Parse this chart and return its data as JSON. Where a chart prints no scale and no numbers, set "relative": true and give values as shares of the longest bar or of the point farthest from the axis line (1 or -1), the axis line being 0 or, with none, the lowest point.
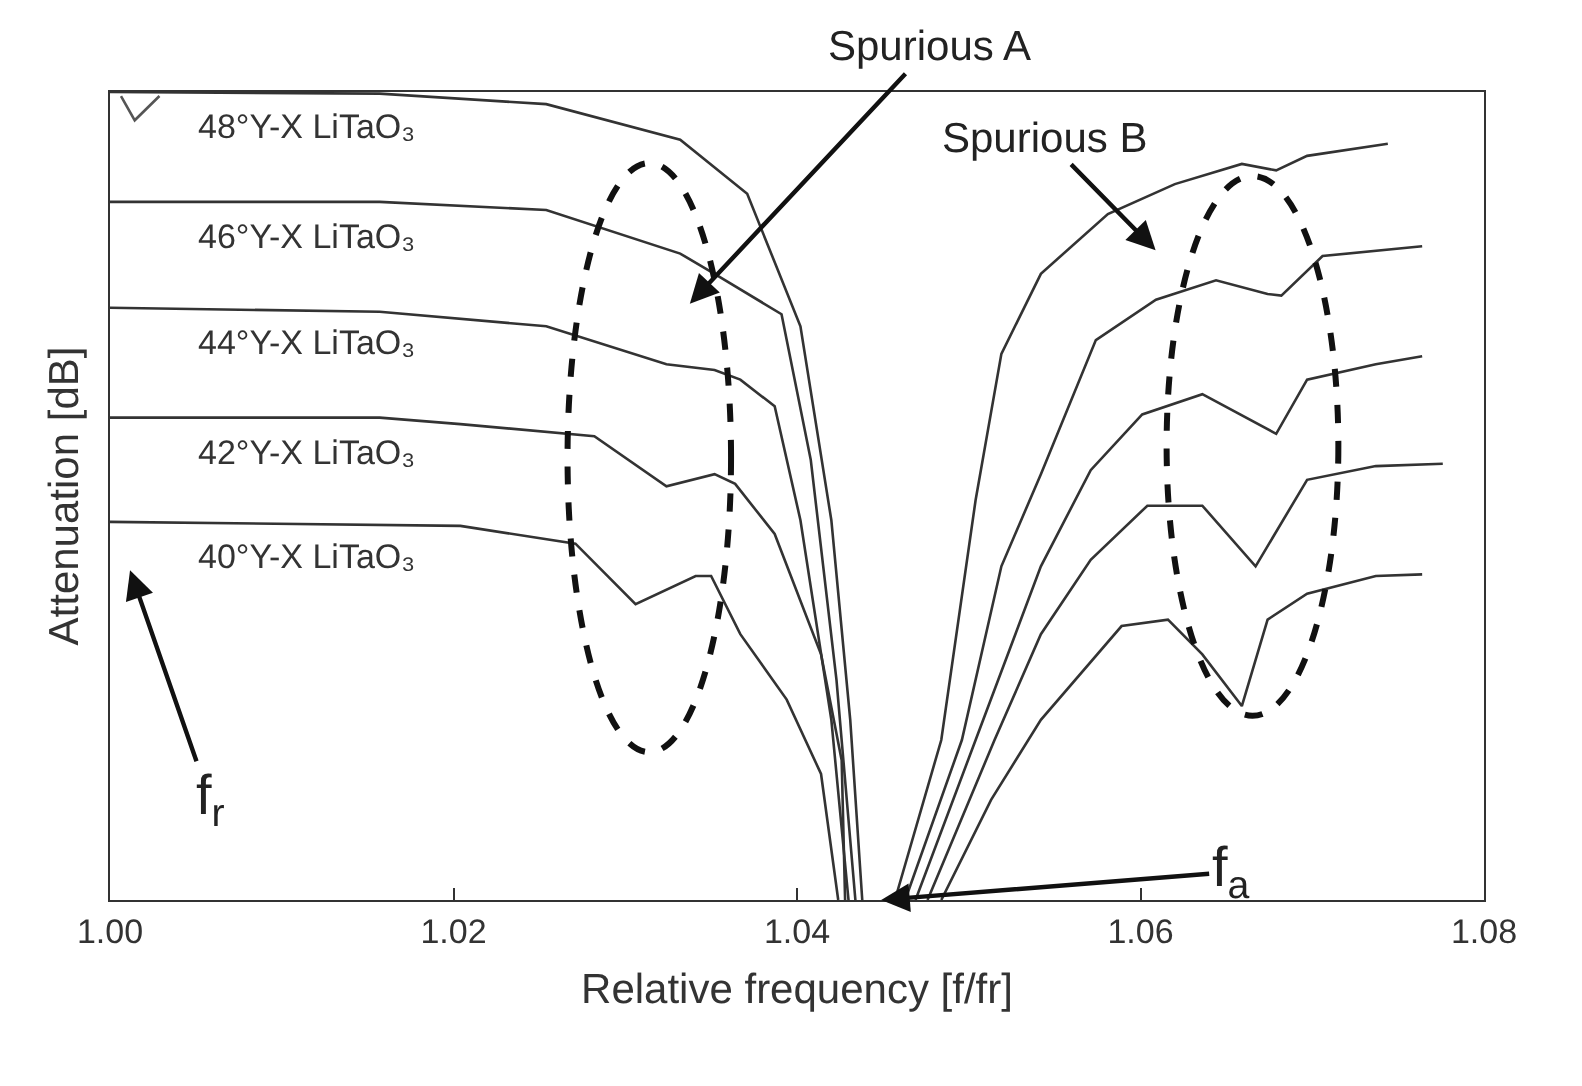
{
  "chart_data": {
    "type": "line",
    "relative": true,
    "xlabel": "Relative frequency [f/fr]",
    "ylabel": "Attenuation [dB]",
    "xlim": [
      1.0,
      1.08
    ],
    "xticks": [
      {
        "value": 1.0,
        "label": "1.00"
      },
      1.02,
      1.04,
      1.06,
      {
        "value": 1.08,
        "label": "1.08"
      }
    ],
    "grid": false,
    "legend": false,
    "marker": "none",
    "line_style": "solid",
    "series": [
      {
        "name": "48°Y-X LiTaO₃",
        "color": "#333333",
        "x": [
          1.0,
          1.0157,
          1.0254,
          1.0332,
          1.0371,
          1.0402,
          1.042,
          1.0431,
          1.0438,
          1.0448,
          1.0457,
          1.0484,
          1.0504,
          1.0519,
          1.0542,
          1.0581,
          1.062,
          1.0659,
          1.0679,
          1.0697,
          1.0744
        ],
        "values": [
          1.0,
          0.998,
          0.985,
          0.941,
          0.874,
          0.71,
          0.47,
          0.223,
          0,
          null,
          0,
          0.198,
          0.495,
          0.676,
          0.775,
          0.849,
          0.886,
          0.911,
          0.903,
          0.921,
          0.936
        ]
      },
      {
        "name": "46°Y-X LiTaO₃",
        "color": "#333333",
        "x": [
          1.0,
          1.0157,
          1.0254,
          1.0332,
          1.0352,
          1.0391,
          1.0408,
          1.0423,
          1.0434,
          1.045,
          1.0463,
          1.0496,
          1.0519,
          1.0542,
          1.0574,
          1.0609,
          1.0644,
          1.0674,
          1.0682,
          1.0706,
          1.0764
        ],
        "values": [
          0.864,
          0.864,
          0.854,
          0.8,
          0.775,
          0.725,
          0.545,
          0.272,
          0,
          null,
          0,
          0.198,
          0.413,
          0.527,
          0.693,
          0.743,
          0.767,
          0.75,
          0.748,
          0.797,
          0.809
        ]
      },
      {
        "name": "44°Y-X LiTaO₃",
        "color": "#333333",
        "x": [
          1.0,
          1.0157,
          1.0254,
          1.0324,
          1.0352,
          1.0367,
          1.0387,
          1.0402,
          1.042,
          1.043,
          1.045,
          1.0469,
          1.0504,
          1.0542,
          1.0571,
          1.0601,
          1.0636,
          1.0679,
          1.0697,
          1.0737,
          1.0764
        ],
        "values": [
          0.733,
          0.728,
          0.71,
          0.663,
          0.656,
          0.644,
          0.611,
          0.47,
          0.223,
          0,
          null,
          0,
          0.198,
          0.413,
          0.532,
          0.601,
          0.626,
          0.577,
          0.644,
          0.663,
          0.673
        ]
      },
      {
        "name": "42°Y-X LiTaO₃",
        "color": "#333333",
        "x": [
          1.0,
          1.0157,
          1.0204,
          1.0282,
          1.0324,
          1.0352,
          1.0364,
          1.0387,
          1.0414,
          1.0426,
          1.0428,
          1.045,
          1.0476,
          1.0515,
          1.0542,
          1.0571,
          1.0604,
          1.0636,
          1.0667,
          1.0697,
          1.0737,
          1.0776
        ],
        "values": [
          0.597,
          0.597,
          0.589,
          0.574,
          0.512,
          0.527,
          0.515,
          0.453,
          0.304,
          0.173,
          0,
          null,
          0,
          0.198,
          0.329,
          0.421,
          0.488,
          0.488,
          0.413,
          0.52,
          0.537,
          0.54
        ]
      },
      {
        "name": "40°Y-X LiTaO₃",
        "color": "#333333",
        "x": [
          1.0,
          1.0204,
          1.0271,
          1.0306,
          1.0341,
          1.035,
          1.0367,
          1.0394,
          1.0414,
          1.0424,
          1.045,
          1.0484,
          1.0513,
          1.0542,
          1.0589,
          1.0616,
          1.0636,
          1.0659,
          1.0674,
          1.0697,
          1.0737,
          1.0764
        ],
        "values": [
          0.468,
          0.463,
          0.441,
          0.366,
          0.401,
          0.401,
          0.329,
          0.248,
          0.156,
          0,
          null,
          0,
          0.124,
          0.223,
          0.339,
          0.347,
          0.304,
          0.24,
          0.347,
          0.379,
          0.401,
          0.403
        ]
      }
    ],
    "annotations": [
      "Spurious A",
      "Spurious B",
      "f$_{r}$",
      {
        "text": "f$_{a}$",
        "x": 1.0449,
        "y": 0
      }
    ]
  }
}
